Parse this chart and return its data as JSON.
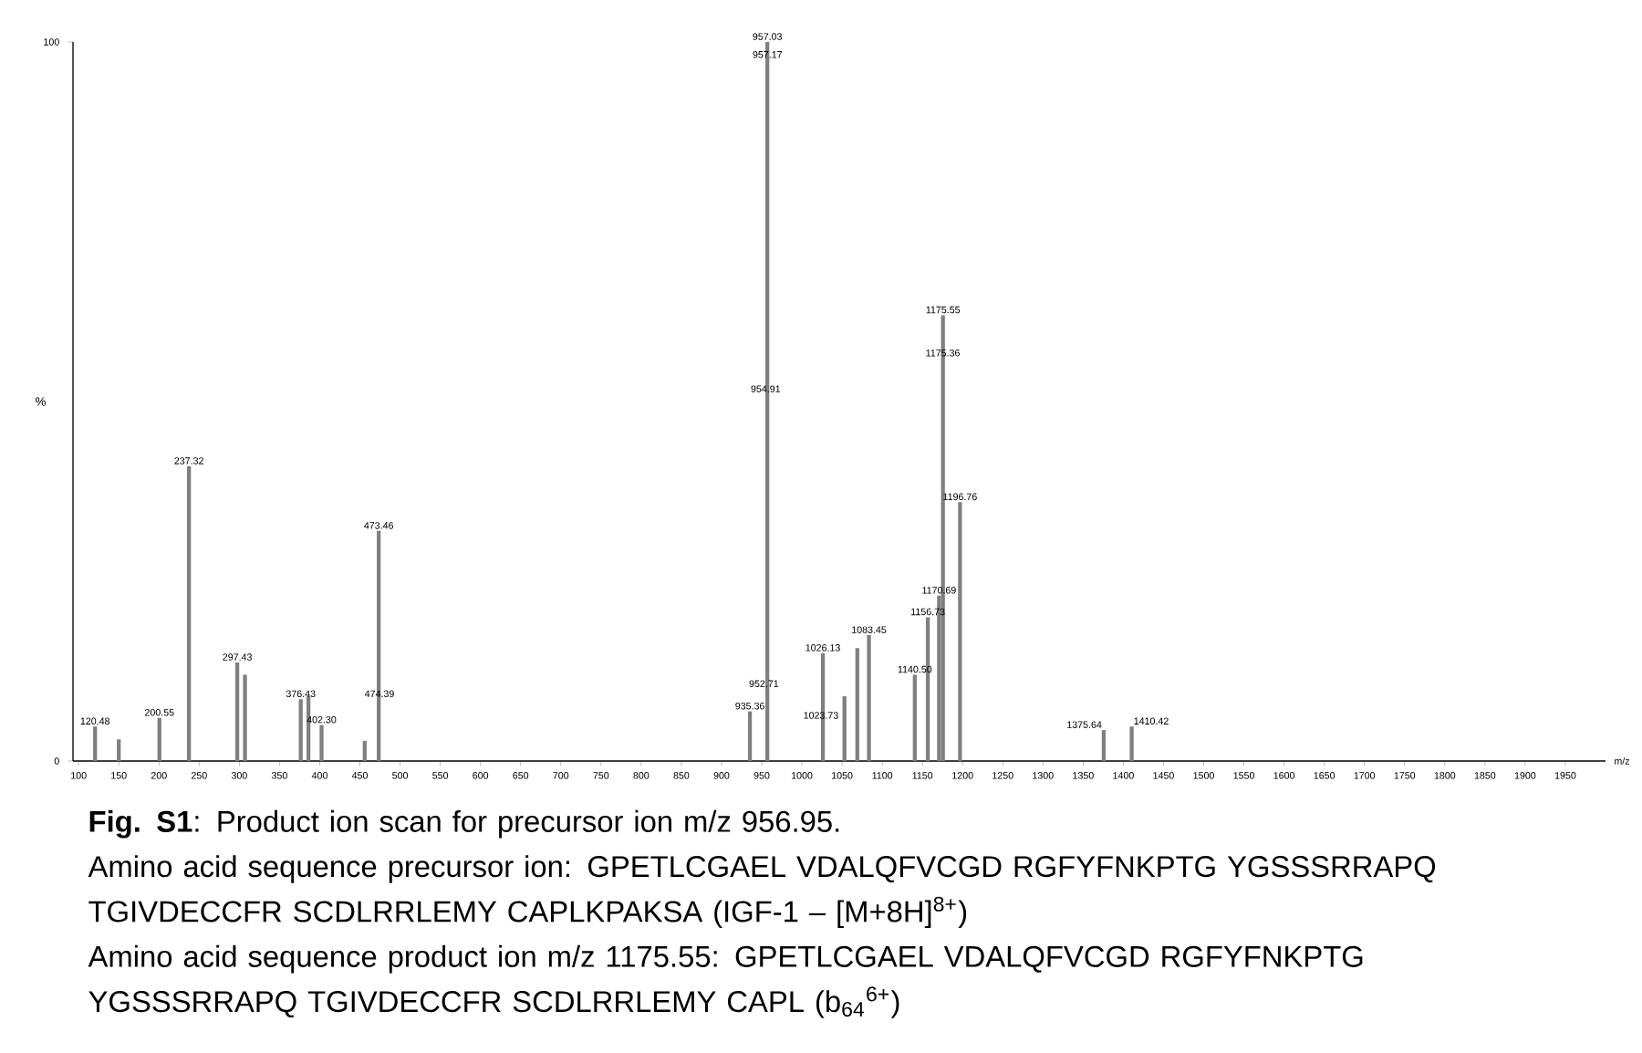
{
  "chart_data": {
    "type": "bar",
    "xlabel": "m/z",
    "ylabel": "%",
    "color": "#7f7f7f",
    "x": [
      120.48,
      150,
      200.55,
      237.32,
      297.43,
      307,
      376.43,
      386,
      402.3,
      456,
      473.46,
      935.36,
      957.03,
      1026.13,
      1053,
      1069,
      1083.45,
      1140.5,
      1156.73,
      1170.69,
      1175.55,
      1196.76,
      1375.64,
      1410.42
    ],
    "values": [
      4.8,
      3,
      6,
      41,
      13.7,
      12,
      8.6,
      9,
      5,
      2.8,
      32,
      6.9,
      100,
      15,
      9,
      15.7,
      17.5,
      12,
      20,
      23,
      62,
      36,
      4.3,
      4.8
    ],
    "xlim": [
      93,
      2000
    ],
    "ylim": [
      0,
      100
    ],
    "xticks": [
      100,
      150,
      200,
      250,
      300,
      350,
      400,
      450,
      500,
      550,
      600,
      650,
      700,
      750,
      800,
      850,
      900,
      950,
      1000,
      1050,
      1100,
      1150,
      1200,
      1250,
      1300,
      1350,
      1400,
      1450,
      1500,
      1550,
      1600,
      1650,
      1700,
      1750,
      1800,
      1850,
      1900,
      1950
    ],
    "yticks": [
      0,
      100
    ],
    "annotations": [
      {
        "text": "120.48",
        "x": 120.48,
        "y": 4.8
      },
      {
        "text": "200.55",
        "x": 200.55,
        "y": 6
      },
      {
        "text": "237.32",
        "x": 237.32,
        "y": 41
      },
      {
        "text": "297.43",
        "x": 297.43,
        "y": 13.7
      },
      {
        "text": "376.43",
        "x": 376.43,
        "y": 8.6
      },
      {
        "text": "402.30",
        "x": 402.3,
        "y": 5
      },
      {
        "text": "473.46",
        "x": 473.46,
        "y": 32
      },
      {
        "text": "474.39",
        "x": 474.39,
        "y": 8.6
      },
      {
        "text": "935.36",
        "x": 935.36,
        "y": 6.9
      },
      {
        "text": "952.71",
        "x": 952.71,
        "y": 10
      },
      {
        "text": "954.91",
        "x": 954.91,
        "y": 51
      },
      {
        "text": "957.03",
        "x": 957.03,
        "y": 100
      },
      {
        "text": "957.17",
        "x": 957.17,
        "y": 97.5
      },
      {
        "text": "1023.73",
        "x": 1023.73,
        "y": 5.6
      },
      {
        "text": "1026.13",
        "x": 1026.13,
        "y": 15
      },
      {
        "text": "1083.45",
        "x": 1083.45,
        "y": 17.5
      },
      {
        "text": "1140.50",
        "x": 1140.5,
        "y": 12
      },
      {
        "text": "1156.73",
        "x": 1156.73,
        "y": 20
      },
      {
        "text": "1170.69",
        "x": 1170.69,
        "y": 23
      },
      {
        "text": "1175.36",
        "x": 1175.36,
        "y": 56
      },
      {
        "text": "1175.55",
        "x": 1175.55,
        "y": 62
      },
      {
        "text": "1196.76",
        "x": 1196.76,
        "y": 36
      },
      {
        "text": "1375.64",
        "x": 1375.64,
        "y": 4.3
      },
      {
        "text": "1410.42",
        "x": 1410.42,
        "y": 4.8
      },
      "**Fig. S1**: Product ion scan for precursor ion m/z 956.95.",
      "Amino acid sequence precursor ion: GPETLCGAEL VDALQFVCGD RGFYFNKPTG YGSSSRRAPQ TGIVDECCFR SCDLRRLEMY CAPLKPAKSA (IGF-1 – [M+8H]$^{8+}$)",
      "Amino acid sequence product ion m/z 1175.55: GPETLCGAEL VDALQFVCGD RGFYFNKPTG YGSSSRRAPQ TGIVDECCFR SCDLRRLEMY CAPL (b$_{64}$$^{6+}$)"
    ]
  }
}
